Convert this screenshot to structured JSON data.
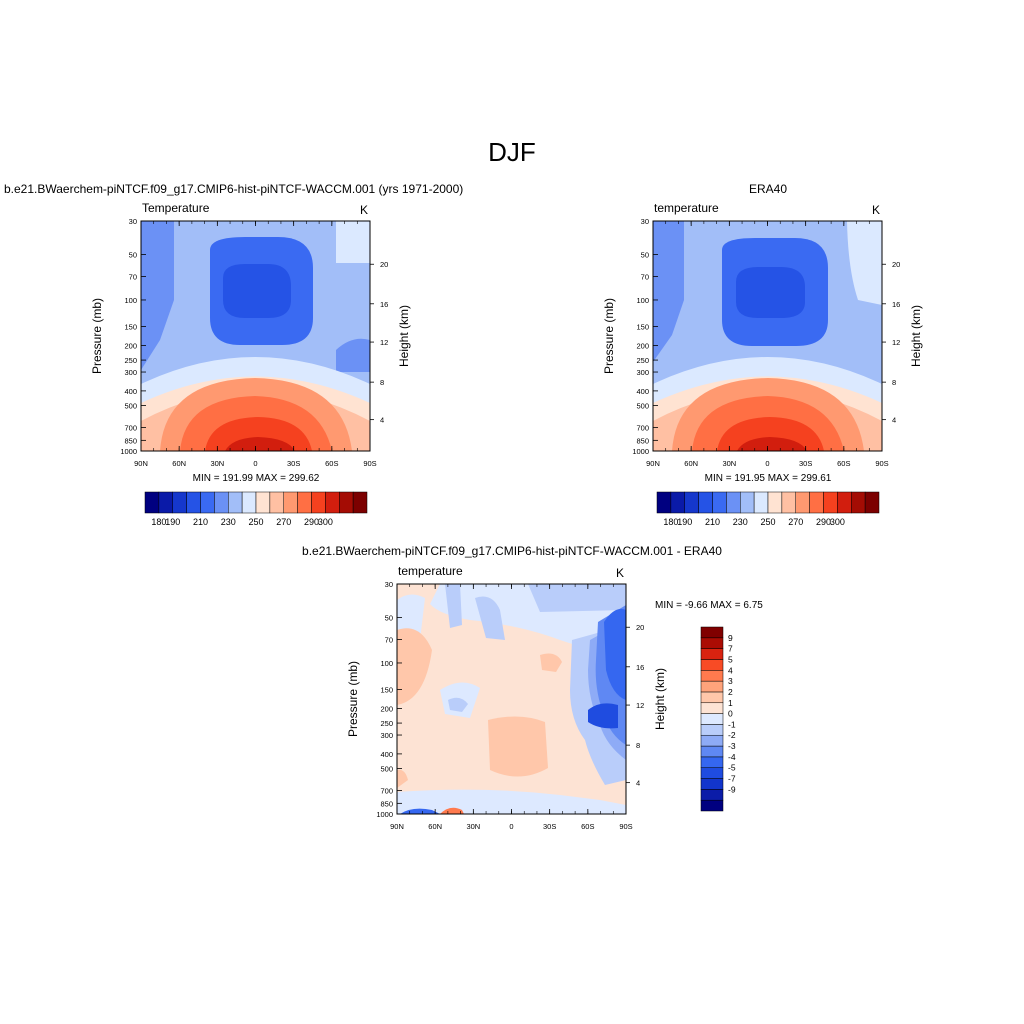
{
  "figure_title": "DJF",
  "colors": {
    "abs_palette": [
      "#000080",
      "#0a1aa8",
      "#1537cc",
      "#2553e6",
      "#3a6af2",
      "#6b91f5",
      "#a2bef8",
      "#dbe9ff",
      "#ffe3d2",
      "#ffc0a3",
      "#ff9970",
      "#ff6f44",
      "#f5411f",
      "#d21e0e",
      "#a40c04",
      "#7c0000"
    ],
    "diff_palette": [
      "#000080",
      "#0b1ca8",
      "#1235cc",
      "#1f4ce0",
      "#3567f0",
      "#5f88f3",
      "#8eabf6",
      "#b9cdfa",
      "#dde9ff",
      "#fde3d4",
      "#ffc7aa",
      "#ffa37b",
      "#ff7a4e",
      "#f84b25",
      "#d92310",
      "#ab0c04",
      "#800000"
    ]
  },
  "chart_data": [
    {
      "type": "heatmap",
      "id": "model",
      "left_title": "b.e21.BWaerchem-piNTCF.f09_g17.CMIP6-hist-piNTCF-WACCM.001 (yrs 1971-2000)",
      "subtitle_left": "Temperature",
      "subtitle_right": "K",
      "xlabel": "",
      "ylabel": "Pressure (mb)",
      "ylabel_right": "Height (km)",
      "x_ticks": [
        "90N",
        "60N",
        "30N",
        "0",
        "30S",
        "60S",
        "90S"
      ],
      "y_ticks": [
        "30",
        "50",
        "70",
        "100",
        "150",
        "200",
        "250",
        "300",
        "400",
        "500",
        "700",
        "850",
        "1000"
      ],
      "y_ticks_right": [
        "20",
        "16",
        "12",
        "8",
        "4"
      ],
      "min_max_text": "MIN = 191.99  MAX = 299.62",
      "min": 191.99,
      "max": 299.62,
      "colorbar_labels": [
        "180",
        "190",
        "210",
        "230",
        "250",
        "270",
        "290",
        "300"
      ]
    },
    {
      "type": "heatmap",
      "id": "obs",
      "center_title": "ERA40",
      "subtitle_left": "temperature",
      "subtitle_right": "K",
      "xlabel": "",
      "ylabel": "Pressure (mb)",
      "ylabel_right": "Height (km)",
      "x_ticks": [
        "90N",
        "60N",
        "30N",
        "0",
        "30S",
        "60S",
        "90S"
      ],
      "y_ticks": [
        "30",
        "50",
        "70",
        "100",
        "150",
        "200",
        "250",
        "300",
        "400",
        "500",
        "700",
        "850",
        "1000"
      ],
      "y_ticks_right": [
        "20",
        "16",
        "12",
        "8",
        "4"
      ],
      "min_max_text": "MIN = 191.95  MAX = 299.61",
      "min": 191.95,
      "max": 299.61,
      "colorbar_labels": [
        "180",
        "190",
        "210",
        "230",
        "250",
        "270",
        "290",
        "300"
      ]
    },
    {
      "type": "heatmap",
      "id": "diff",
      "center_title": "b.e21.BWaerchem-piNTCF.f09_g17.CMIP6-hist-piNTCF-WACCM.001 - ERA40",
      "subtitle_left": "temperature",
      "subtitle_right": "K",
      "xlabel": "",
      "ylabel": "Pressure (mb)",
      "ylabel_right": "Height (km)",
      "x_ticks": [
        "90N",
        "60N",
        "30N",
        "0",
        "30S",
        "60S",
        "90S"
      ],
      "y_ticks": [
        "30",
        "50",
        "70",
        "100",
        "150",
        "200",
        "250",
        "300",
        "400",
        "500",
        "700",
        "850",
        "1000"
      ],
      "y_ticks_right": [
        "20",
        "16",
        "12",
        "8",
        "4"
      ],
      "min_max_text": "MIN =  -9.66  MAX =   6.75",
      "min": -9.66,
      "max": 6.75,
      "colorbar_labels": [
        "9",
        "7",
        "5",
        "4",
        "3",
        "2",
        "1",
        "0",
        "-1",
        "-2",
        "-3",
        "-4",
        "-5",
        "-7",
        "-9"
      ]
    }
  ]
}
